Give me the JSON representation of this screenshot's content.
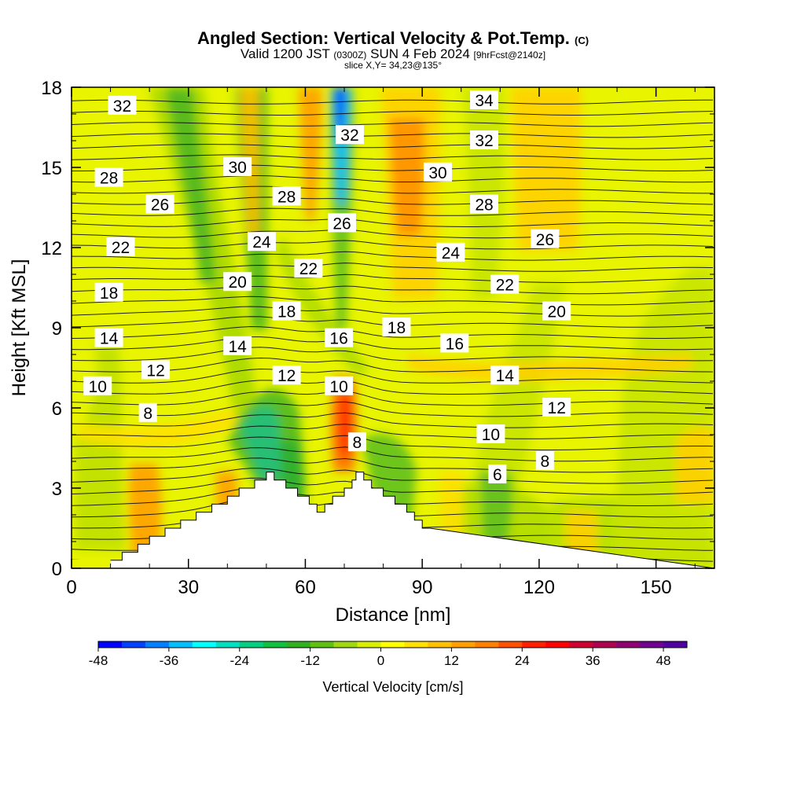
{
  "header": {
    "title": "Angled Section: Vertical Velocity & Pot.Temp.",
    "title_mark": "(C)",
    "valid_prefix": "Valid 1200 JST",
    "valid_utc": "(0300Z)",
    "valid_date": "SUN 4 Feb 2024",
    "forecast_tag": "[9hrFcst@2140z]",
    "slice": "slice X,Y= 34,23@135°"
  },
  "chart_data": {
    "type": "heatmap",
    "xlabel": "Distance [nm]",
    "ylabel": "Height [Kft MSL]",
    "xlim": [
      0,
      165
    ],
    "ylim": [
      0,
      18
    ],
    "x_ticks": [
      0,
      30,
      60,
      90,
      120,
      150
    ],
    "y_ticks": [
      0,
      3,
      6,
      9,
      12,
      15,
      18
    ],
    "colorbar": {
      "label": "Vertical Velocity [cm/s]",
      "min": -48,
      "max": 52,
      "step": 4,
      "tick_values": [
        -48,
        -36,
        -24,
        -12,
        0,
        12,
        24,
        36,
        48
      ],
      "colors": [
        "#0000ff",
        "#0040ff",
        "#0080ff",
        "#00c0ff",
        "#00ffff",
        "#00e0c0",
        "#00d080",
        "#10c040",
        "#30b020",
        "#60c010",
        "#a0d810",
        "#d8f000",
        "#ffff00",
        "#ffe000",
        "#ffc000",
        "#ffa000",
        "#ff8000",
        "#ff5000",
        "#ff2000",
        "#ff0000",
        "#d00030",
        "#b00050",
        "#900070",
        "#700090",
        "#5000a0"
      ]
    },
    "terrain": [
      [
        10,
        0.3
      ],
      [
        13,
        0.6
      ],
      [
        17,
        0.9
      ],
      [
        20,
        1.2
      ],
      [
        24,
        1.5
      ],
      [
        28,
        1.8
      ],
      [
        32,
        2.1
      ],
      [
        36,
        2.4
      ],
      [
        40,
        2.7
      ],
      [
        43,
        3.0
      ],
      [
        47,
        3.3
      ],
      [
        50,
        3.6
      ],
      [
        52,
        3.3
      ],
      [
        55,
        3.0
      ],
      [
        58,
        2.7
      ],
      [
        61,
        2.4
      ],
      [
        63,
        2.1
      ],
      [
        65,
        2.4
      ],
      [
        67,
        2.7
      ],
      [
        70,
        3.0
      ],
      [
        72,
        3.3
      ],
      [
        73,
        3.6
      ],
      [
        75,
        3.3
      ],
      [
        77,
        3.0
      ],
      [
        80,
        2.7
      ],
      [
        83,
        2.4
      ],
      [
        86,
        2.1
      ],
      [
        88,
        1.8
      ],
      [
        90,
        1.5
      ]
    ],
    "theta_labels": [
      {
        "value": "32",
        "x": 13,
        "y": 17.3
      },
      {
        "value": "28",
        "x": 9.6,
        "y": 14.6
      },
      {
        "value": "26",
        "x": 22.7,
        "y": 13.6
      },
      {
        "value": "22",
        "x": 12.6,
        "y": 12.0
      },
      {
        "value": "18",
        "x": 9.6,
        "y": 10.3
      },
      {
        "value": "14",
        "x": 9.6,
        "y": 8.6
      },
      {
        "value": "12",
        "x": 21.6,
        "y": 7.4
      },
      {
        "value": "10",
        "x": 6.7,
        "y": 6.8
      },
      {
        "value": "8",
        "x": 19.6,
        "y": 5.8
      },
      {
        "value": "30",
        "x": 42.6,
        "y": 15.0
      },
      {
        "value": "28",
        "x": 55.2,
        "y": 13.9
      },
      {
        "value": "24",
        "x": 48.8,
        "y": 12.2
      },
      {
        "value": "22",
        "x": 60.8,
        "y": 11.2
      },
      {
        "value": "20",
        "x": 42.6,
        "y": 10.7
      },
      {
        "value": "18",
        "x": 55.2,
        "y": 9.6
      },
      {
        "value": "14",
        "x": 42.6,
        "y": 8.3
      },
      {
        "value": "12",
        "x": 55.2,
        "y": 7.2
      },
      {
        "value": "32",
        "x": 71.4,
        "y": 16.2
      },
      {
        "value": "26",
        "x": 69.4,
        "y": 12.9
      },
      {
        "value": "16",
        "x": 68.6,
        "y": 8.6
      },
      {
        "value": "10",
        "x": 68.6,
        "y": 6.8
      },
      {
        "value": "8",
        "x": 73.3,
        "y": 4.7
      },
      {
        "value": "18",
        "x": 83.4,
        "y": 9.0
      },
      {
        "value": "34",
        "x": 105.9,
        "y": 17.5
      },
      {
        "value": "32",
        "x": 105.9,
        "y": 16.0
      },
      {
        "value": "30",
        "x": 94.0,
        "y": 14.8
      },
      {
        "value": "28",
        "x": 105.9,
        "y": 13.6
      },
      {
        "value": "24",
        "x": 97.3,
        "y": 11.8
      },
      {
        "value": "22",
        "x": 111.2,
        "y": 10.6
      },
      {
        "value": "16",
        "x": 98.3,
        "y": 8.4
      },
      {
        "value": "14",
        "x": 111.2,
        "y": 7.2
      },
      {
        "value": "20",
        "x": 124.5,
        "y": 9.6
      },
      {
        "value": "26",
        "x": 121.5,
        "y": 12.3
      },
      {
        "value": "12",
        "x": 124.5,
        "y": 6.0
      },
      {
        "value": "10",
        "x": 107.6,
        "y": 5.0
      },
      {
        "value": "8",
        "x": 121.5,
        "y": 4.0
      },
      {
        "value": "6",
        "x": 109.3,
        "y": 3.5
      }
    ]
  }
}
